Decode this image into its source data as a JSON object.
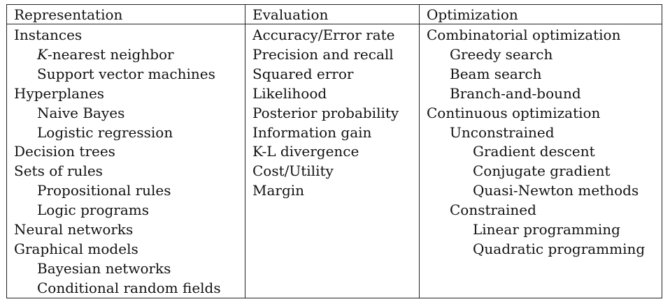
{
  "headers": {
    "representation": "Representation",
    "evaluation": "Evaluation",
    "optimization": "Optimization"
  },
  "representation": [
    {
      "label": "Instances",
      "level": 1
    },
    {
      "label": "K",
      "suffix": "-nearest neighbor",
      "level": 2
    },
    {
      "label": "Support vector machines",
      "level": 2
    },
    {
      "label": "Hyperplanes",
      "level": 1
    },
    {
      "label": "Naive Bayes",
      "level": 2
    },
    {
      "label": "Logistic regression",
      "level": 2
    },
    {
      "label": "Decision trees",
      "level": 1
    },
    {
      "label": "Sets of rules",
      "level": 1
    },
    {
      "label": "Propositional rules",
      "level": 2
    },
    {
      "label": "Logic programs",
      "level": 2
    },
    {
      "label": "Neural networks",
      "level": 1
    },
    {
      "label": "Graphical models",
      "level": 1
    },
    {
      "label": "Bayesian networks",
      "level": 2
    },
    {
      "label": "Conditional random fields",
      "level": 2
    }
  ],
  "evaluation": [
    {
      "label": "Accuracy/Error rate",
      "level": 1
    },
    {
      "label": "Precision and recall",
      "level": 1
    },
    {
      "label": "Squared error",
      "level": 1
    },
    {
      "label": "Likelihood",
      "level": 1
    },
    {
      "label": "Posterior probability",
      "level": 1
    },
    {
      "label": "Information gain",
      "level": 1
    },
    {
      "label": "K-L divergence",
      "level": 1
    },
    {
      "label": "Cost/Utility",
      "level": 1
    },
    {
      "label": "Margin",
      "level": 1
    }
  ],
  "optimization": [
    {
      "label": "Combinatorial optimization",
      "level": 1
    },
    {
      "label": "Greedy search",
      "level": 2
    },
    {
      "label": "Beam search",
      "level": 2
    },
    {
      "label": "Branch-and-bound",
      "level": 2
    },
    {
      "label": "Continuous optimization",
      "level": 1
    },
    {
      "label": "Unconstrained",
      "level": 2
    },
    {
      "label": "Gradient descent",
      "level": 3
    },
    {
      "label": "Conjugate gradient",
      "level": 3
    },
    {
      "label": "Quasi-Newton methods",
      "level": 3
    },
    {
      "label": "Constrained",
      "level": 2
    },
    {
      "label": "Linear programming",
      "level": 3
    },
    {
      "label": "Quadratic programming",
      "level": 3
    }
  ]
}
